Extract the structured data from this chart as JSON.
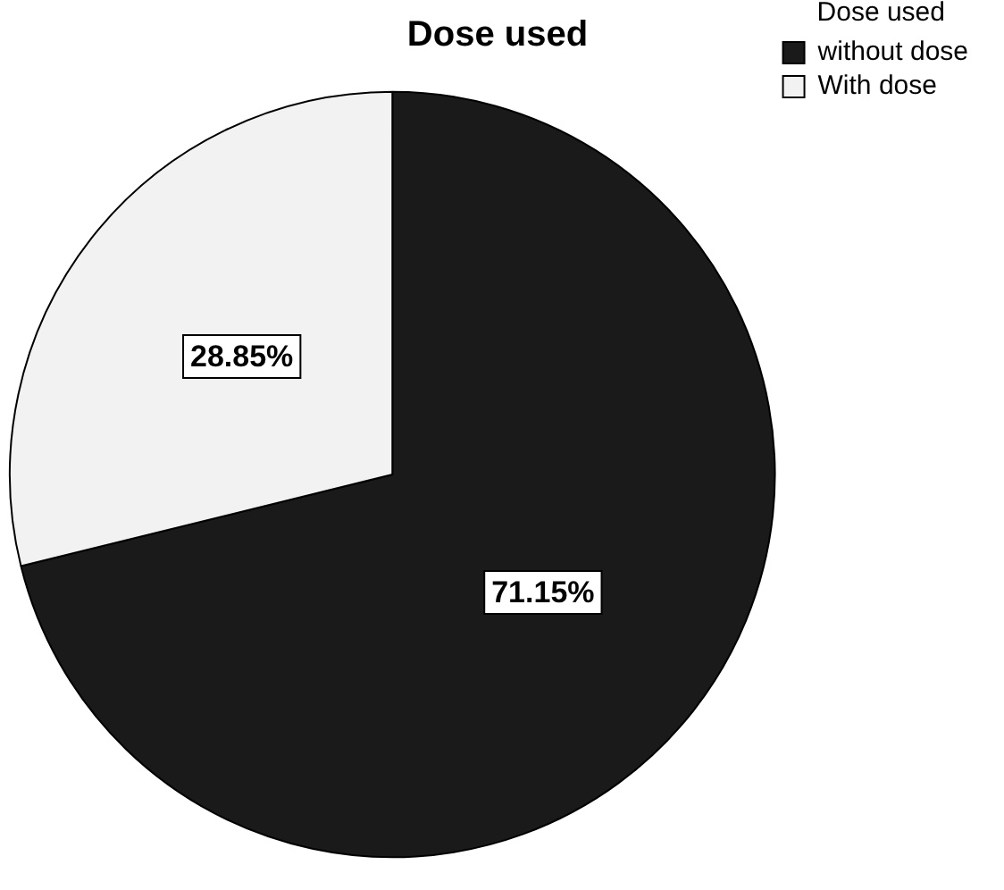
{
  "chart_data": {
    "type": "pie",
    "title": "Dose used",
    "legend_title": "Dose used",
    "categories": [
      "without dose",
      "With dose"
    ],
    "values": [
      71.15,
      28.85
    ],
    "colors": [
      "#1a1a1a",
      "#f2f2f2"
    ],
    "value_labels": [
      "71.15%",
      "28.85%"
    ],
    "legend": "top right"
  }
}
